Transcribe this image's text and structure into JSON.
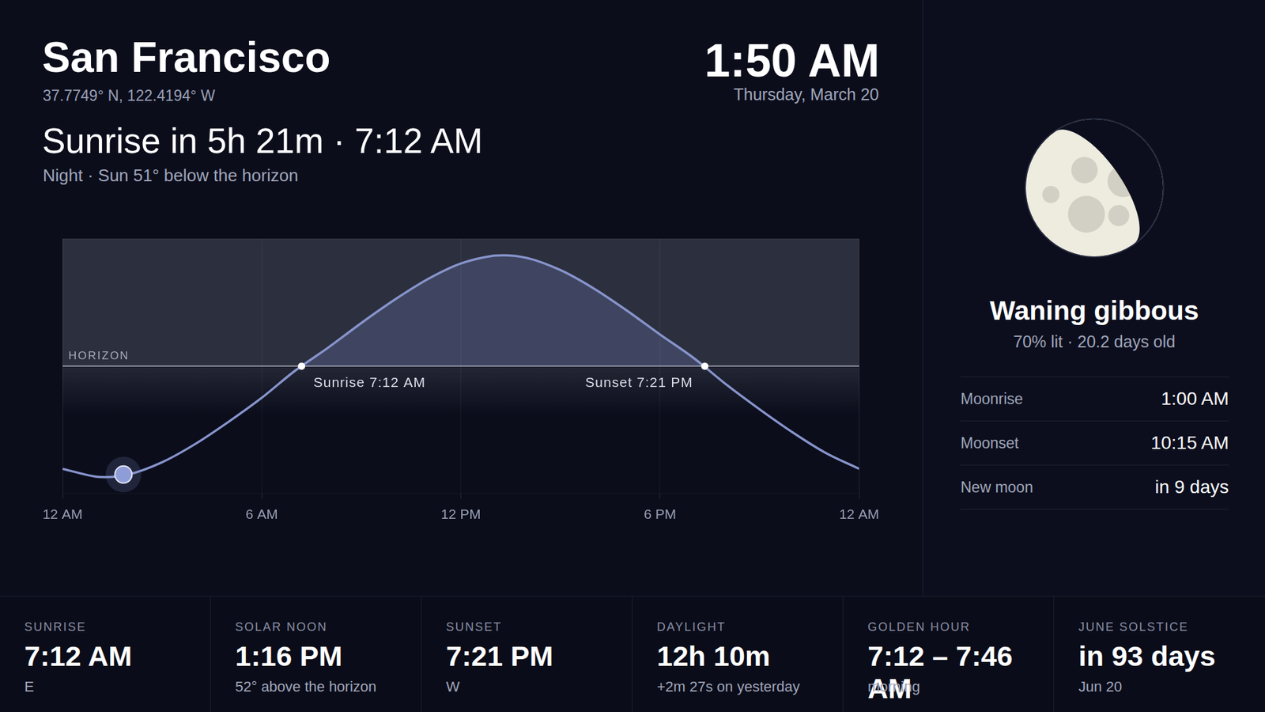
{
  "header": {
    "city": "San Francisco",
    "coords": "37.7749° N, 122.4194° W",
    "headline": "Sunrise in 5h 21m · 7:12 AM",
    "status": "Night · Sun 51° below the horizon",
    "time": "1:50 AM",
    "date": "Thursday, March 20"
  },
  "chart_data": {
    "type": "line",
    "color": "#8794cc",
    "x": [
      0,
      1,
      1.27,
      2,
      3,
      4,
      5,
      6,
      7,
      8,
      9,
      10,
      11,
      12,
      13,
      13.27,
      14,
      15,
      16,
      17,
      18,
      19,
      20,
      21,
      22,
      23,
      24
    ],
    "values": [
      -48.3,
      -52.0,
      -52.2,
      -50.9,
      -45.2,
      -36.6,
      -26.2,
      -14.9,
      -2.2,
      8.7,
      20.3,
      31.2,
      40.9,
      48.3,
      52.0,
      52.2,
      50.9,
      45.2,
      36.6,
      26.2,
      14.9,
      4.0,
      -8.7,
      -20.3,
      -31.2,
      -40.9,
      -48.3
    ],
    "xlim": [
      0,
      24
    ],
    "xticks": [
      {
        "value": 0,
        "label": "12 AM"
      },
      {
        "value": 6,
        "label": "6 AM"
      },
      {
        "value": 12,
        "label": "12 PM"
      },
      {
        "value": 18,
        "label": "6 PM"
      },
      {
        "value": 24,
        "label": "12 AM"
      }
    ],
    "ylim": [
      -60,
      60
    ],
    "grid": true,
    "tick_labels": "x",
    "annotations": [
      {
        "text": "HORIZON",
        "y": 0
      },
      {
        "text": "Sunrise 7:12 AM",
        "x": 7.2,
        "y": 0
      },
      {
        "text": "Sunset 7:21 PM",
        "x": 19.35,
        "y": 0
      }
    ],
    "current": {
      "x": 1.833,
      "y": -51
    }
  },
  "moon": {
    "phase": "Waning gibbous",
    "detail": "70% lit · 20.2 days old",
    "rows": [
      {
        "label": "Moonrise",
        "value": "1:00 AM"
      },
      {
        "label": "Moonset",
        "value": "10:15 AM"
      },
      {
        "label": "New moon",
        "value": "in 9 days"
      }
    ]
  },
  "summary": [
    {
      "label": "SUNRISE",
      "value": "7:12 AM",
      "sub": "E"
    },
    {
      "label": "SOLAR NOON",
      "value": "1:16 PM",
      "sub": "52° above the horizon"
    },
    {
      "label": "SUNSET",
      "value": "7:21 PM",
      "sub": "W"
    },
    {
      "label": "DAYLIGHT",
      "value": "12h 10m",
      "sub": "+2m 27s on yesterday"
    },
    {
      "label": "GOLDEN HOUR",
      "value": "7:12 – 7:46 AM",
      "sub": "morning"
    },
    {
      "label": "JUNE SOLSTICE",
      "value": "in 93 days",
      "sub": "Jun 20"
    }
  ]
}
